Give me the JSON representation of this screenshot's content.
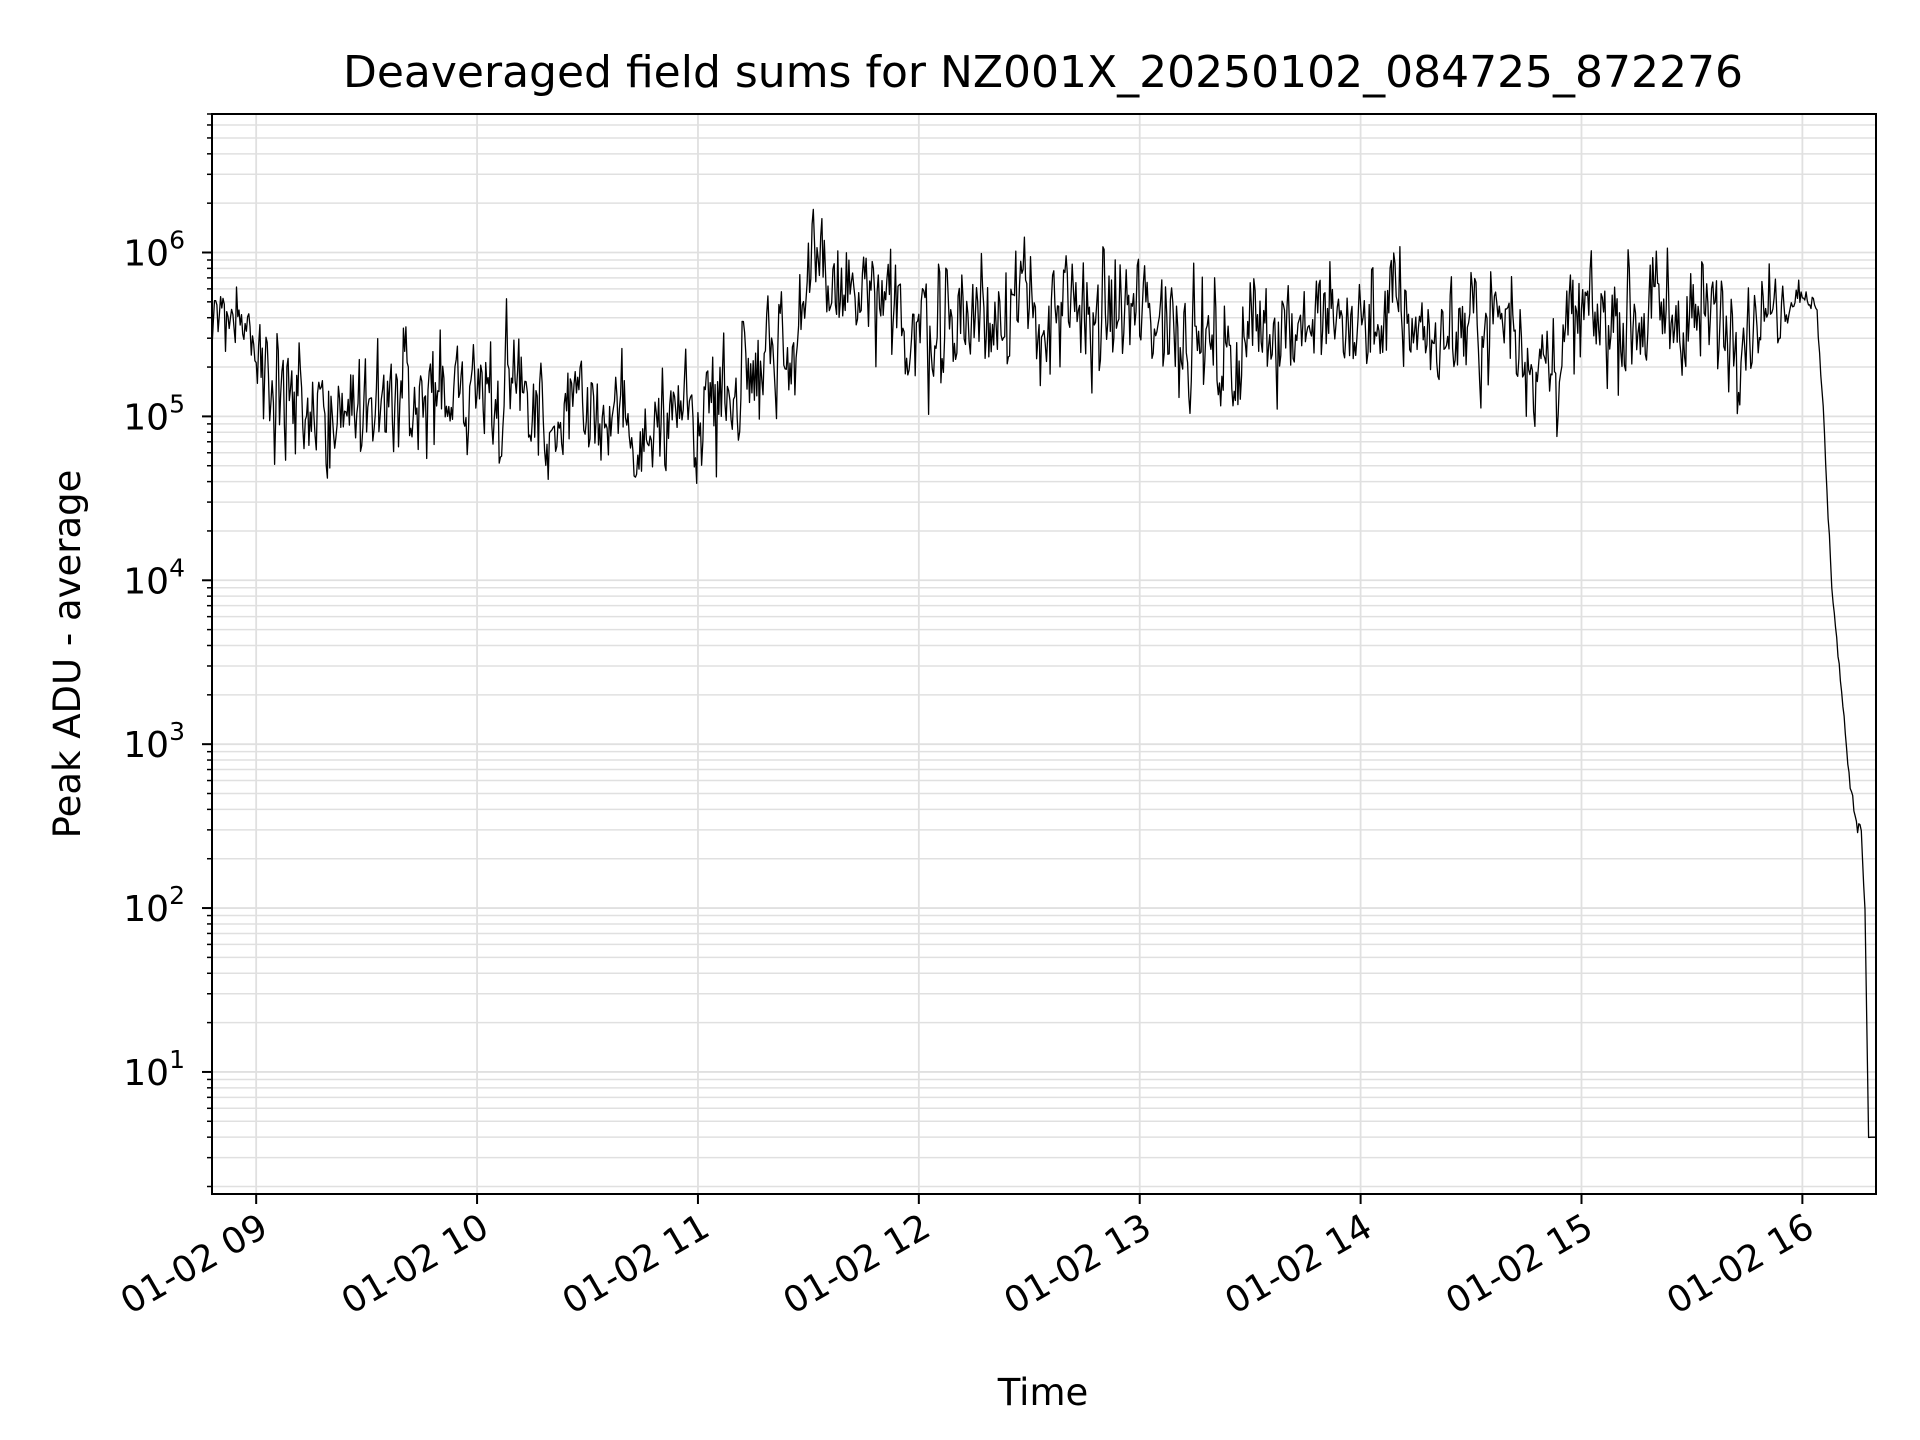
{
  "chart_data": {
    "type": "line",
    "title": "Deaveraged field sums for NZ001X_20250102_084725_872276",
    "xlabel": "Time",
    "ylabel": "Peak ADU - average",
    "x_ticks": [
      "01-02 09",
      "01-02 10",
      "01-02 11",
      "01-02 12",
      "01-02 13",
      "01-02 14",
      "01-02 15",
      "01-02 16"
    ],
    "x_tick_times": [
      "2025-01-02 09:00",
      "2025-01-02 10:00",
      "2025-01-02 11:00",
      "2025-01-02 12:00",
      "2025-01-02 13:00",
      "2025-01-02 14:00",
      "2025-01-02 15:00",
      "2025-01-02 16:00"
    ],
    "xlim": [
      "2025-01-02 08:48",
      "2025-01-02 16:20"
    ],
    "y_scale": "log",
    "y_ticks": [
      {
        "base": "10",
        "exp": "1"
      },
      {
        "base": "10",
        "exp": "2"
      },
      {
        "base": "10",
        "exp": "3"
      },
      {
        "base": "10",
        "exp": "4"
      },
      {
        "base": "10",
        "exp": "5"
      },
      {
        "base": "10",
        "exp": "6"
      }
    ],
    "ylim": [
      1.8,
      7000000
    ],
    "grid": true,
    "line_color": "#000000",
    "grid_color": "#e0e0e0",
    "series": [
      {
        "x": [
          "2025-01-02 08:48",
          "2025-01-02 08:52",
          "2025-01-02 08:56",
          "2025-01-02 09:00",
          "2025-01-02 09:03",
          "2025-01-02 09:06",
          "2025-01-02 09:10",
          "2025-01-02 09:15",
          "2025-01-02 09:20",
          "2025-01-02 09:25",
          "2025-01-02 09:30",
          "2025-01-02 09:40",
          "2025-01-02 09:50",
          "2025-01-02 10:00",
          "2025-01-02 10:10",
          "2025-01-02 10:20",
          "2025-01-02 10:30",
          "2025-01-02 10:40",
          "2025-01-02 10:50",
          "2025-01-02 11:00",
          "2025-01-02 11:10",
          "2025-01-02 11:15",
          "2025-01-02 11:20",
          "2025-01-02 11:25",
          "2025-01-02 11:30",
          "2025-01-02 11:35",
          "2025-01-02 11:40",
          "2025-01-02 11:45",
          "2025-01-02 11:50",
          "2025-01-02 12:00",
          "2025-01-02 12:10",
          "2025-01-02 12:20",
          "2025-01-02 12:25",
          "2025-01-02 12:30",
          "2025-01-02 12:40",
          "2025-01-02 12:50",
          "2025-01-02 13:00",
          "2025-01-02 13:10",
          "2025-01-02 13:20",
          "2025-01-02 13:25",
          "2025-01-02 13:30",
          "2025-01-02 13:40",
          "2025-01-02 13:50",
          "2025-01-02 14:00",
          "2025-01-02 14:10",
          "2025-01-02 14:20",
          "2025-01-02 14:30",
          "2025-01-02 14:40",
          "2025-01-02 14:50",
          "2025-01-02 15:00",
          "2025-01-02 15:10",
          "2025-01-02 15:20",
          "2025-01-02 15:30",
          "2025-01-02 15:40",
          "2025-01-02 15:50",
          "2025-01-02 15:55",
          "2025-01-02 16:00",
          "2025-01-02 16:02",
          "2025-01-02 16:04",
          "2025-01-02 16:06",
          "2025-01-02 16:08",
          "2025-01-02 16:10",
          "2025-01-02 16:12",
          "2025-01-02 16:14",
          "2025-01-02 16:16",
          "2025-01-02 16:17",
          "2025-01-02 16:18",
          "2025-01-02 16:19",
          "2025-01-02 16:20"
        ],
        "y": [
          500000,
          480000,
          420000,
          350000,
          200000,
          150000,
          130000,
          110000,
          100000,
          120000,
          140000,
          110000,
          120000,
          130000,
          160000,
          100000,
          90000,
          95000,
          85000,
          110000,
          150000,
          250000,
          300000,
          250000,
          600000,
          700000,
          550000,
          500000,
          400000,
          350000,
          400000,
          420000,
          600000,
          380000,
          400000,
          420000,
          430000,
          400000,
          250000,
          200000,
          350000,
          400000,
          380000,
          350000,
          450000,
          300000,
          350000,
          420000,
          180000,
          380000,
          400000,
          420000,
          400000,
          380000,
          420000,
          500000,
          600000,
          550000,
          400000,
          80000,
          9000,
          3000,
          900,
          400,
          300,
          100,
          4,
          4,
          4
        ],
        "noise_sigma_decades": [
          0.25,
          0.25,
          0.25,
          0.3,
          0.35,
          0.35,
          0.35,
          0.35,
          0.35,
          0.35,
          0.35,
          0.35,
          0.35,
          0.35,
          0.35,
          0.35,
          0.35,
          0.35,
          0.35,
          0.35,
          0.35,
          0.35,
          0.35,
          0.35,
          0.35,
          0.35,
          0.35,
          0.35,
          0.35,
          0.35,
          0.35,
          0.35,
          0.35,
          0.35,
          0.35,
          0.35,
          0.35,
          0.35,
          0.35,
          0.35,
          0.35,
          0.35,
          0.35,
          0.35,
          0.35,
          0.35,
          0.35,
          0.35,
          0.35,
          0.35,
          0.35,
          0.35,
          0.35,
          0.35,
          0.3,
          0.15,
          0.1,
          0.08,
          0.05,
          0.05,
          0.05,
          0.05,
          0.05,
          0.05,
          0.05,
          0.05,
          0,
          0,
          0
        ]
      }
    ]
  }
}
